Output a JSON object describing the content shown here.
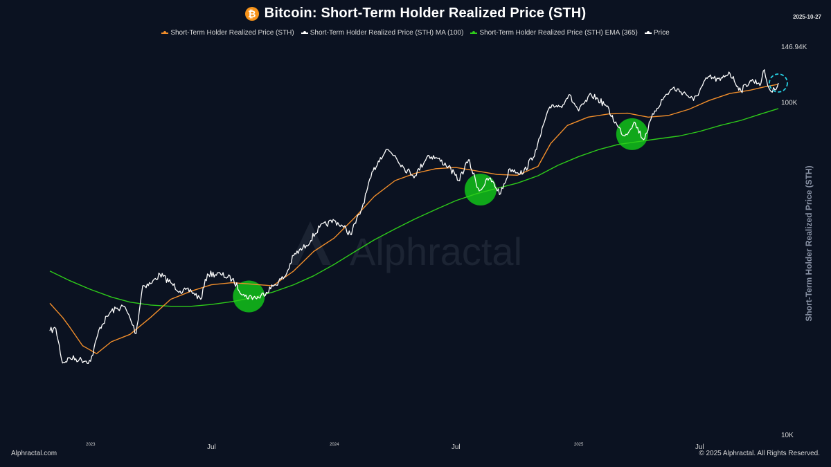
{
  "header": {
    "title": "Bitcoin: Short-Term Holder Realized Price (STH)",
    "date": "2025-10-27",
    "icon": "bitcoin-icon"
  },
  "legend": [
    {
      "label": "Short-Term Holder Realized Price (STH)",
      "color": "#f28e2b"
    },
    {
      "label": "Short-Term Holder Realized Price (STH) MA (100)",
      "color": "#ffffff"
    },
    {
      "label": "Short-Term Holder Realized Price (STH) EMA (365)",
      "color": "#2ecc1a"
    },
    {
      "label": "Price",
      "color": "#ffffff"
    }
  ],
  "footer": {
    "left": "Alphractal.com",
    "right": "© 2025 Alphractal. All Rights Reserved."
  },
  "watermark": "Alphractal",
  "chart_data": {
    "type": "line",
    "title": "Bitcoin: Short-Term Holder Realized Price (STH)",
    "ylabel": "Short-Term Holder Realized Price (STH)",
    "y_scale": "log",
    "ylim": [
      10000,
      146940
    ],
    "y_ticks": [
      {
        "value": 146940,
        "label": "146.94K"
      },
      {
        "value": 100000,
        "label": "100K"
      },
      {
        "value": 10000,
        "label": "10K"
      }
    ],
    "x_range": [
      "2022-11-01",
      "2025-10-27"
    ],
    "x_ticks": [
      {
        "date": "2023-01-01",
        "label": "2023",
        "small": true
      },
      {
        "date": "2023-07-01",
        "label": "Jul",
        "small": false
      },
      {
        "date": "2024-01-01",
        "label": "2024",
        "small": true
      },
      {
        "date": "2024-07-01",
        "label": "Jul",
        "small": false
      },
      {
        "date": "2025-01-01",
        "label": "2025",
        "small": true
      },
      {
        "date": "2025-07-01",
        "label": "Jul",
        "small": false
      }
    ],
    "series": [
      {
        "name": "Price",
        "color": "#ffffff",
        "x": [
          "2022-11-01",
          "2022-11-10",
          "2022-11-20",
          "2022-12-01",
          "2022-12-15",
          "2023-01-01",
          "2023-01-15",
          "2023-02-01",
          "2023-02-20",
          "2023-03-01",
          "2023-03-10",
          "2023-03-20",
          "2023-04-01",
          "2023-04-15",
          "2023-05-01",
          "2023-05-15",
          "2023-06-01",
          "2023-06-15",
          "2023-06-25",
          "2023-07-15",
          "2023-08-01",
          "2023-08-20",
          "2023-09-10",
          "2023-10-01",
          "2023-10-20",
          "2023-11-01",
          "2023-11-20",
          "2023-12-10",
          "2024-01-01",
          "2024-01-15",
          "2024-01-25",
          "2024-02-10",
          "2024-02-28",
          "2024-03-10",
          "2024-03-20",
          "2024-04-01",
          "2024-04-15",
          "2024-05-01",
          "2024-05-20",
          "2024-06-01",
          "2024-06-20",
          "2024-07-05",
          "2024-07-20",
          "2024-08-05",
          "2024-08-20",
          "2024-09-06",
          "2024-09-20",
          "2024-10-10",
          "2024-10-30",
          "2024-11-12",
          "2024-11-22",
          "2024-12-05",
          "2024-12-17",
          "2025-01-01",
          "2025-01-20",
          "2025-02-10",
          "2025-03-01",
          "2025-03-11",
          "2025-03-25",
          "2025-04-08",
          "2025-04-25",
          "2025-05-10",
          "2025-05-22",
          "2025-06-10",
          "2025-06-22",
          "2025-07-14",
          "2025-08-01",
          "2025-08-14",
          "2025-09-01",
          "2025-09-15",
          "2025-10-01",
          "2025-10-06",
          "2025-10-11",
          "2025-10-18",
          "2025-10-27"
        ],
        "values": [
          20500,
          20800,
          16400,
          17000,
          16800,
          16600,
          21000,
          23500,
          24300,
          22400,
          20100,
          28000,
          28400,
          30300,
          28600,
          27000,
          27000,
          25500,
          30400,
          30300,
          29300,
          26000,
          25800,
          27900,
          30000,
          34500,
          37000,
          42000,
          44000,
          42000,
          40000,
          47000,
          62000,
          68000,
          72000,
          69000,
          63000,
          60000,
          69000,
          68000,
          64000,
          58000,
          67000,
          54000,
          59000,
          53000,
          63000,
          61000,
          72000,
          89000,
          98000,
          97000,
          105000,
          94000,
          105000,
          98000,
          84000,
          79000,
          87000,
          77000,
          94000,
          104000,
          110000,
          106000,
          101000,
          119000,
          116000,
          123000,
          108000,
          116000,
          114000,
          125000,
          112000,
          107000,
          114000
        ]
      },
      {
        "name": "Short-Term Holder Realized Price (STH)",
        "color": "#f28e2b",
        "x": [
          "2022-11-01",
          "2022-11-20",
          "2022-12-01",
          "2022-12-20",
          "2023-01-10",
          "2023-02-01",
          "2023-03-01",
          "2023-04-01",
          "2023-05-01",
          "2023-06-01",
          "2023-07-01",
          "2023-08-01",
          "2023-09-01",
          "2023-10-01",
          "2023-11-01",
          "2023-12-01",
          "2024-01-01",
          "2024-02-01",
          "2024-03-01",
          "2024-04-01",
          "2024-05-01",
          "2024-06-01",
          "2024-07-01",
          "2024-08-01",
          "2024-09-01",
          "2024-10-01",
          "2024-11-01",
          "2024-11-20",
          "2024-12-15",
          "2025-01-15",
          "2025-02-15",
          "2025-03-15",
          "2025-04-15",
          "2025-05-15",
          "2025-06-15",
          "2025-07-15",
          "2025-08-15",
          "2025-09-15",
          "2025-10-06",
          "2025-10-27"
        ],
        "values": [
          24800,
          22500,
          21000,
          18500,
          17500,
          19000,
          20000,
          22500,
          25500,
          27000,
          28200,
          28600,
          28300,
          28000,
          31000,
          35500,
          39000,
          45000,
          52000,
          58000,
          61000,
          63000,
          63500,
          62000,
          60500,
          60200,
          64000,
          75000,
          85000,
          90000,
          92000,
          92500,
          90000,
          91000,
          95000,
          101000,
          106000,
          108500,
          111000,
          113000
        ]
      },
      {
        "name": "Short-Term Holder Realized Price (STH) EMA (365)",
        "color": "#2ecc1a",
        "x": [
          "2022-11-01",
          "2022-12-01",
          "2023-01-01",
          "2023-02-01",
          "2023-03-01",
          "2023-04-01",
          "2023-05-01",
          "2023-06-01",
          "2023-07-01",
          "2023-08-01",
          "2023-09-01",
          "2023-10-01",
          "2023-11-01",
          "2023-12-01",
          "2024-01-01",
          "2024-02-01",
          "2024-03-01",
          "2024-04-01",
          "2024-05-01",
          "2024-06-01",
          "2024-07-01",
          "2024-08-01",
          "2024-09-01",
          "2024-10-01",
          "2024-11-01",
          "2024-12-01",
          "2025-01-01",
          "2025-02-01",
          "2025-03-01",
          "2025-04-01",
          "2025-05-01",
          "2025-06-01",
          "2025-07-01",
          "2025-08-01",
          "2025-09-01",
          "2025-10-01",
          "2025-10-27"
        ],
        "values": [
          31000,
          29000,
          27300,
          25900,
          25000,
          24500,
          24300,
          24300,
          24600,
          25100,
          25800,
          26800,
          28200,
          30000,
          32500,
          35500,
          38500,
          41500,
          44500,
          47500,
          50500,
          53000,
          55000,
          57000,
          60000,
          64500,
          68500,
          72000,
          74500,
          76000,
          77500,
          79000,
          81500,
          85000,
          88000,
          92000,
          95500
        ]
      }
    ],
    "highlights": [
      {
        "date": "2023-08-26",
        "value": 26000,
        "color": "#11b81a",
        "kind": "filled-circle"
      },
      {
        "date": "2024-08-07",
        "value": 54500,
        "color": "#11b81a",
        "kind": "filled-circle"
      },
      {
        "date": "2025-03-22",
        "value": 80000,
        "color": "#11b81a",
        "kind": "filled-circle"
      },
      {
        "date": "2025-10-27",
        "value": 114000,
        "color": "#27d3e6",
        "kind": "dashed-circle"
      }
    ],
    "grid": false,
    "legend_position": "top-center"
  }
}
